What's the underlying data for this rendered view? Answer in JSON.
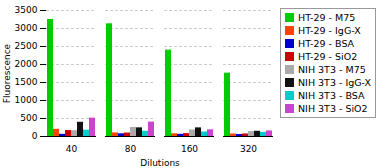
{
  "chart_data": {
    "type": "bar",
    "xlabel": "Dilutions",
    "ylabel": "Fluorescence",
    "categories": [
      "40",
      "80",
      "160",
      "320"
    ],
    "series": [
      {
        "name": "HT-29 - M75",
        "color": "#00cc00",
        "values": [
          3250,
          3130,
          2400,
          1760
        ]
      },
      {
        "name": "HT-29 - IgG-X",
        "color": "#ff4400",
        "values": [
          200,
          100,
          75,
          70
        ]
      },
      {
        "name": "HT-29 - BSA",
        "color": "#0000cc",
        "values": [
          60,
          75,
          60,
          55
        ]
      },
      {
        "name": "HT-29 - SiO2",
        "color": "#cc0000",
        "values": [
          165,
          95,
          80,
          70
        ]
      },
      {
        "name": "NIH 3T3 - M75",
        "color": "#aaaaaa",
        "values": [
          160,
          250,
          180,
          135
        ]
      },
      {
        "name": "NIH 3T3 - IgG-X",
        "color": "#111111",
        "values": [
          395,
          240,
          240,
          145
        ]
      },
      {
        "name": "NIH 3T3 - BSA",
        "color": "#00cccc",
        "values": [
          175,
          145,
          125,
          115
        ]
      },
      {
        "name": "NIH 3T3 - SiO2",
        "color": "#cc44cc",
        "values": [
          510,
          400,
          185,
          155
        ]
      }
    ],
    "ylim": [
      0,
      3500
    ],
    "yticks": [
      0,
      500,
      1000,
      1500,
      2000,
      2500,
      3000,
      3500
    ],
    "grid": true,
    "legend": "right"
  }
}
